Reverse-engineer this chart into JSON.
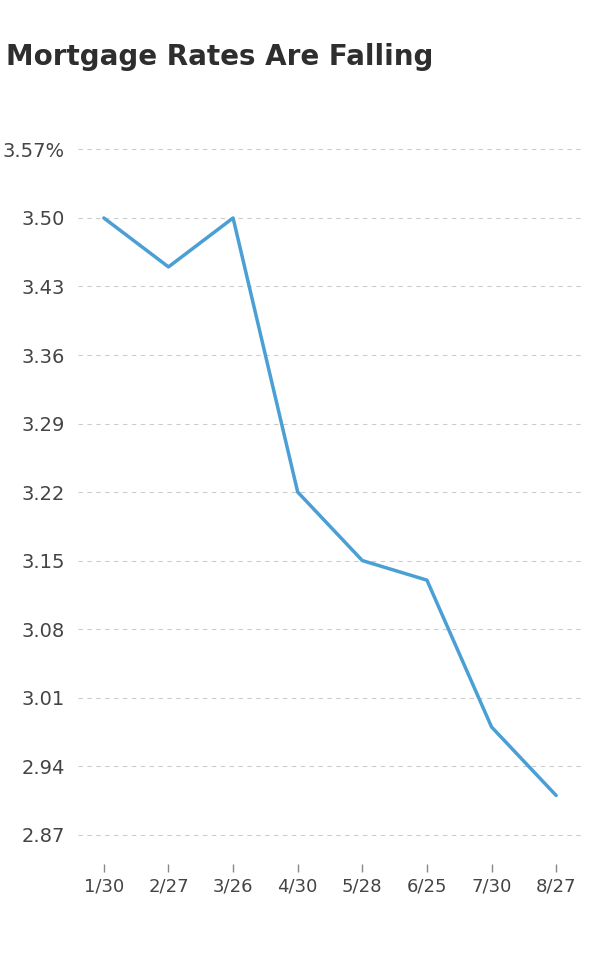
{
  "title": "Mortgage Rates Are Falling",
  "x_labels": [
    "1/30",
    "2/27",
    "3/26",
    "4/30",
    "5/28",
    "6/25",
    "7/30",
    "8/27"
  ],
  "y_values": [
    3.5,
    3.45,
    3.5,
    3.22,
    3.15,
    3.13,
    2.98,
    2.91
  ],
  "y_ticks": [
    2.87,
    2.94,
    3.01,
    3.08,
    3.15,
    3.22,
    3.29,
    3.36,
    3.43,
    3.5,
    3.57
  ],
  "ylim": [
    2.84,
    3.605
  ],
  "line_color": "#4a9fd4",
  "line_width": 2.5,
  "background_color": "#ffffff",
  "title_color": "#2e2e2e",
  "tick_color": "#444444",
  "grid_color": "#cccccc",
  "title_fontsize": 20,
  "tick_fontsize": 14,
  "xtick_fontsize": 13
}
